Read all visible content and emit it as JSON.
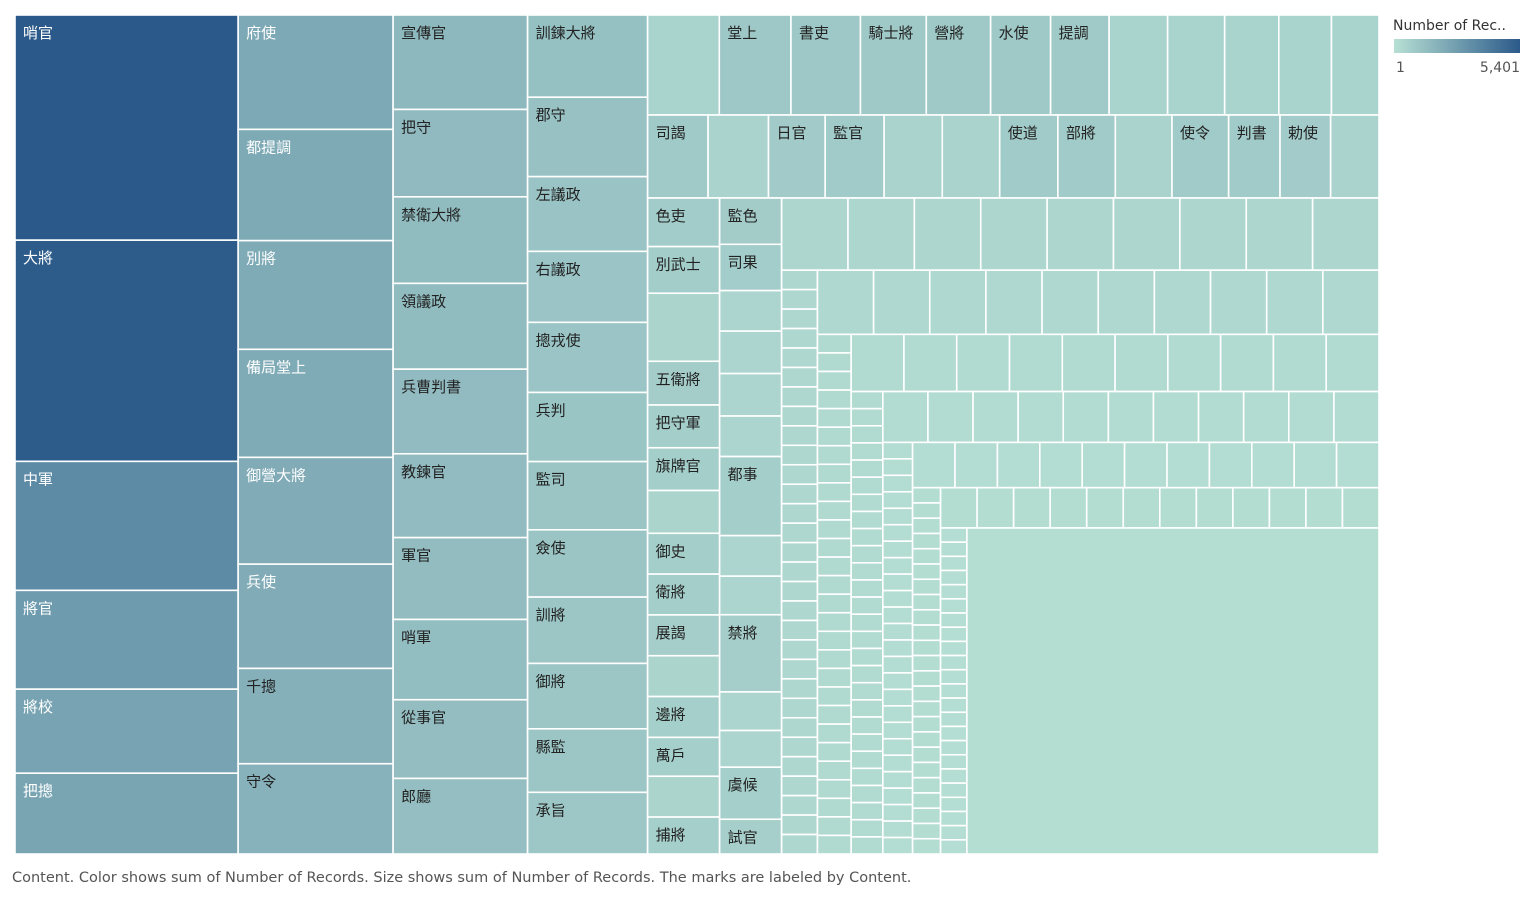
{
  "chart_data": {
    "type": "treemap",
    "measure": "Number of Records",
    "dimension": "Content",
    "color_range": {
      "min": 1,
      "max": 5401,
      "min_label": "1",
      "max_label": "5,401",
      "low_color": "#b7e0d4",
      "high_color": "#2b5a8a"
    },
    "legend_title": "Number of Rec..",
    "caption": "Content.  Color shows sum of Number of Records.  Size shows sum of Number of Records.  The marks are labeled by Content.",
    "columns": [
      {
        "items": [
          {
            "label": "哨官",
            "value": 5401
          },
          {
            "label": "大將",
            "value": 5306
          },
          {
            "label": "中軍",
            "value": 3094
          },
          {
            "label": "將官",
            "value": 2370
          },
          {
            "label": "將校",
            "value": 2016
          },
          {
            "label": "把摠",
            "value": 1938
          }
        ]
      },
      {
        "items": [
          {
            "label": "府使",
            "value": 1800
          },
          {
            "label": "都提調",
            "value": 1750
          },
          {
            "label": "別將",
            "value": 1710
          },
          {
            "label": "備局堂上",
            "value": 1700
          },
          {
            "label": "御營大將",
            "value": 1680
          },
          {
            "label": "兵使",
            "value": 1640
          },
          {
            "label": "千摠",
            "value": 1500
          },
          {
            "label": "守令",
            "value": 1420
          }
        ]
      },
      {
        "items": [
          {
            "label": "宣傳官",
            "value": 1200
          },
          {
            "label": "把守",
            "value": 1110
          },
          {
            "label": "禁衛大將",
            "value": 1100
          },
          {
            "label": "領議政",
            "value": 1090
          },
          {
            "label": "兵曹判書",
            "value": 1075
          },
          {
            "label": "教鍊官",
            "value": 1065
          },
          {
            "label": "軍官",
            "value": 1040
          },
          {
            "label": "哨軍",
            "value": 1020
          },
          {
            "label": "從事官",
            "value": 1000
          },
          {
            "label": "郎廳",
            "value": 960
          }
        ]
      },
      {
        "items": [
          {
            "label": "訓鍊大將",
            "value": 880
          },
          {
            "label": "郡守",
            "value": 850
          },
          {
            "label": "左議政",
            "value": 800
          },
          {
            "label": "右議政",
            "value": 760
          },
          {
            "label": "摠戎使",
            "value": 750
          },
          {
            "label": "兵判",
            "value": 740
          },
          {
            "label": "監司",
            "value": 730
          },
          {
            "label": "僉使",
            "value": 720
          },
          {
            "label": "訓將",
            "value": 710
          },
          {
            "label": "御將",
            "value": 700
          },
          {
            "label": "縣監",
            "value": 680
          },
          {
            "label": "承旨",
            "value": 660
          }
        ]
      }
    ],
    "remaining_labels": [
      {
        "label": "堂上",
        "value": 630
      },
      {
        "label": "書吏",
        "value": 620
      },
      {
        "label": "騎士將",
        "value": 610
      },
      {
        "label": "營將",
        "value": 600
      },
      {
        "label": "水使",
        "value": 590
      },
      {
        "label": "提調",
        "value": 580
      },
      {
        "label": "司謁",
        "value": 560
      },
      {
        "label": "日官",
        "value": 550
      },
      {
        "label": "監官",
        "value": 545
      },
      {
        "label": "使道",
        "value": 540
      },
      {
        "label": "部將",
        "value": 535
      },
      {
        "label": "使令",
        "value": 530
      },
      {
        "label": "判書",
        "value": 525
      },
      {
        "label": "勅使",
        "value": 520
      },
      {
        "label": "色吏",
        "value": 500
      },
      {
        "label": "監色",
        "value": 490
      },
      {
        "label": "別武士",
        "value": 480
      },
      {
        "label": "司果",
        "value": 470
      },
      {
        "label": "五衛將",
        "value": 460
      },
      {
        "label": "把守軍",
        "value": 455
      },
      {
        "label": "旗牌官",
        "value": 450
      },
      {
        "label": "都事",
        "value": 445
      },
      {
        "label": "御史",
        "value": 440
      },
      {
        "label": "衛將",
        "value": 435
      },
      {
        "label": "展謁",
        "value": 430
      },
      {
        "label": "禁將",
        "value": 425
      },
      {
        "label": "邊將",
        "value": 420
      },
      {
        "label": "萬戶",
        "value": 415
      },
      {
        "label": "虞候",
        "value": 410
      },
      {
        "label": "捕將",
        "value": 405
      },
      {
        "label": "試官",
        "value": 400
      }
    ]
  }
}
